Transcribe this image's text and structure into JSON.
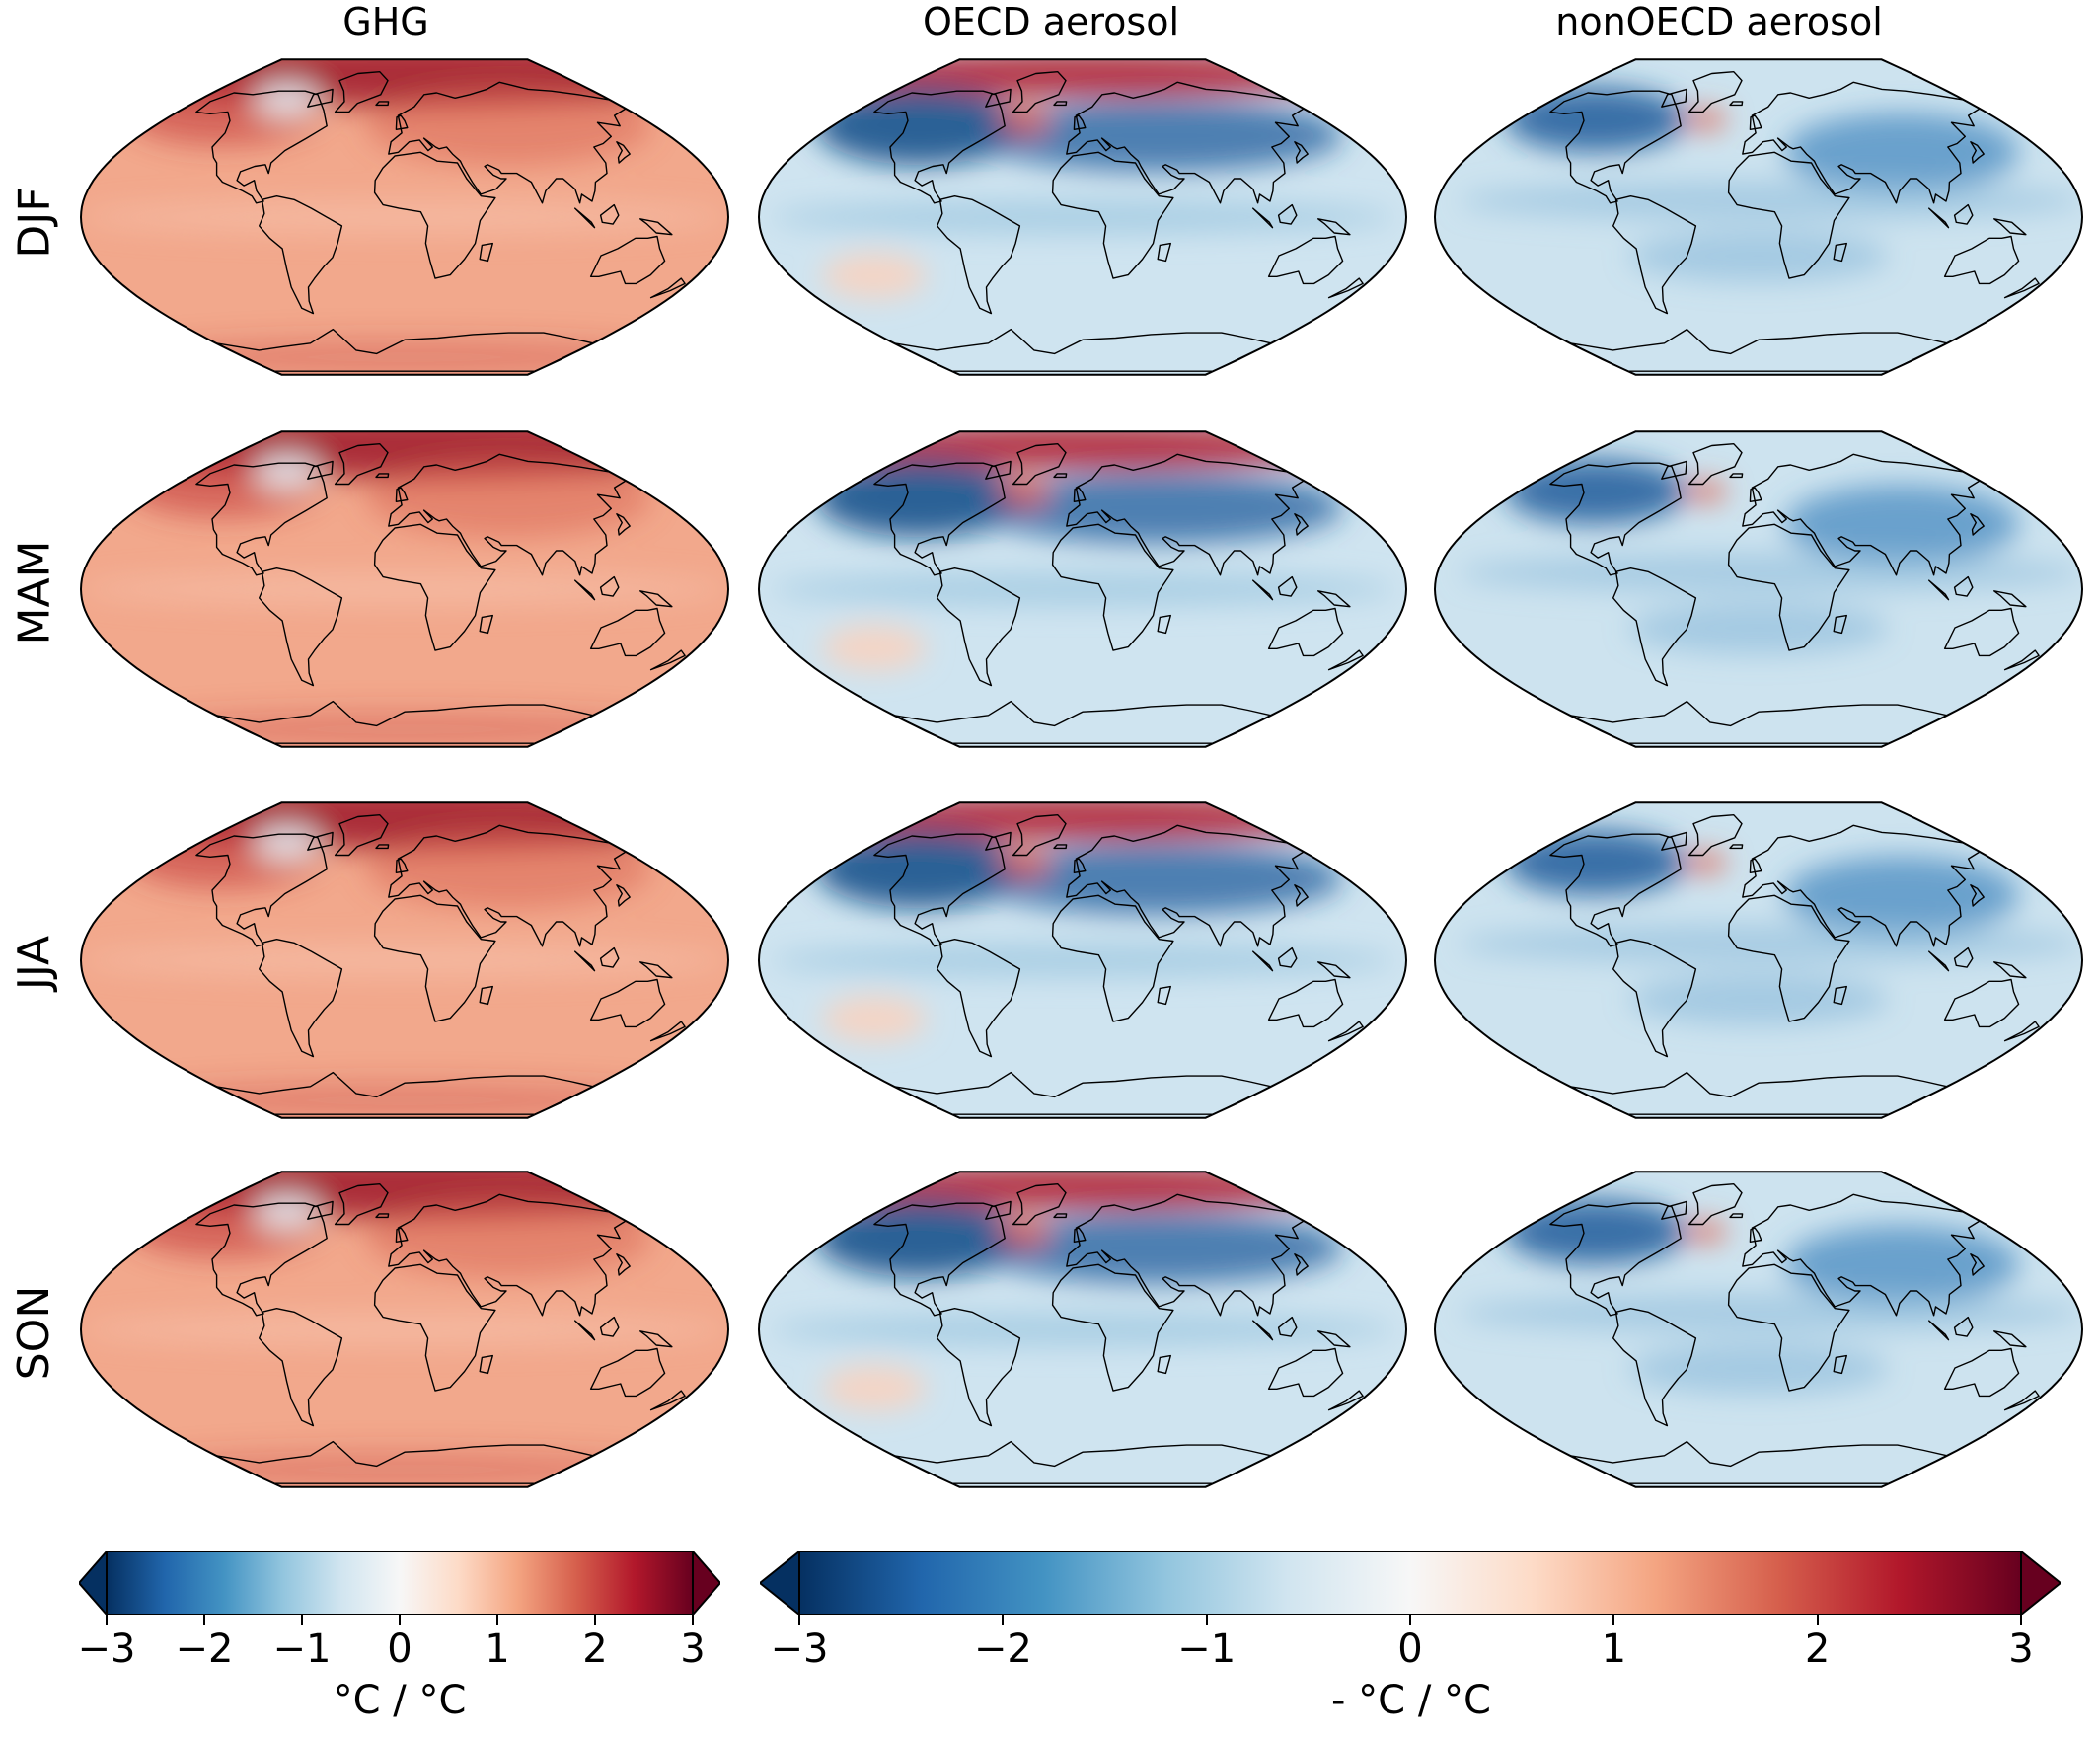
{
  "columns": [
    {
      "title": "GHG",
      "scheme": "warm"
    },
    {
      "title": "OECD aerosol",
      "scheme": "aer"
    },
    {
      "title": "nonOECD aerosol",
      "scheme": "cool"
    }
  ],
  "rows": [
    {
      "label": "DJF"
    },
    {
      "label": "MAM"
    },
    {
      "label": "JJA"
    },
    {
      "label": "SON"
    }
  ],
  "colorbars": [
    {
      "unit": "°C / °C",
      "ticks": [
        "−3",
        "−2",
        "−1",
        "0",
        "1",
        "2",
        "3"
      ],
      "range": [
        -3,
        3
      ]
    },
    {
      "unit": "- °C / °C",
      "ticks": [
        "−3",
        "−2",
        "−1",
        "0",
        "1",
        "2",
        "3"
      ],
      "range": [
        -3,
        3
      ]
    }
  ],
  "colormap": [
    "#053061",
    "#2166ac",
    "#4393c3",
    "#92c5de",
    "#d1e5f0",
    "#f7f7f7",
    "#fddbc7",
    "#f4a582",
    "#d6604d",
    "#b2182b",
    "#67001f"
  ]
}
